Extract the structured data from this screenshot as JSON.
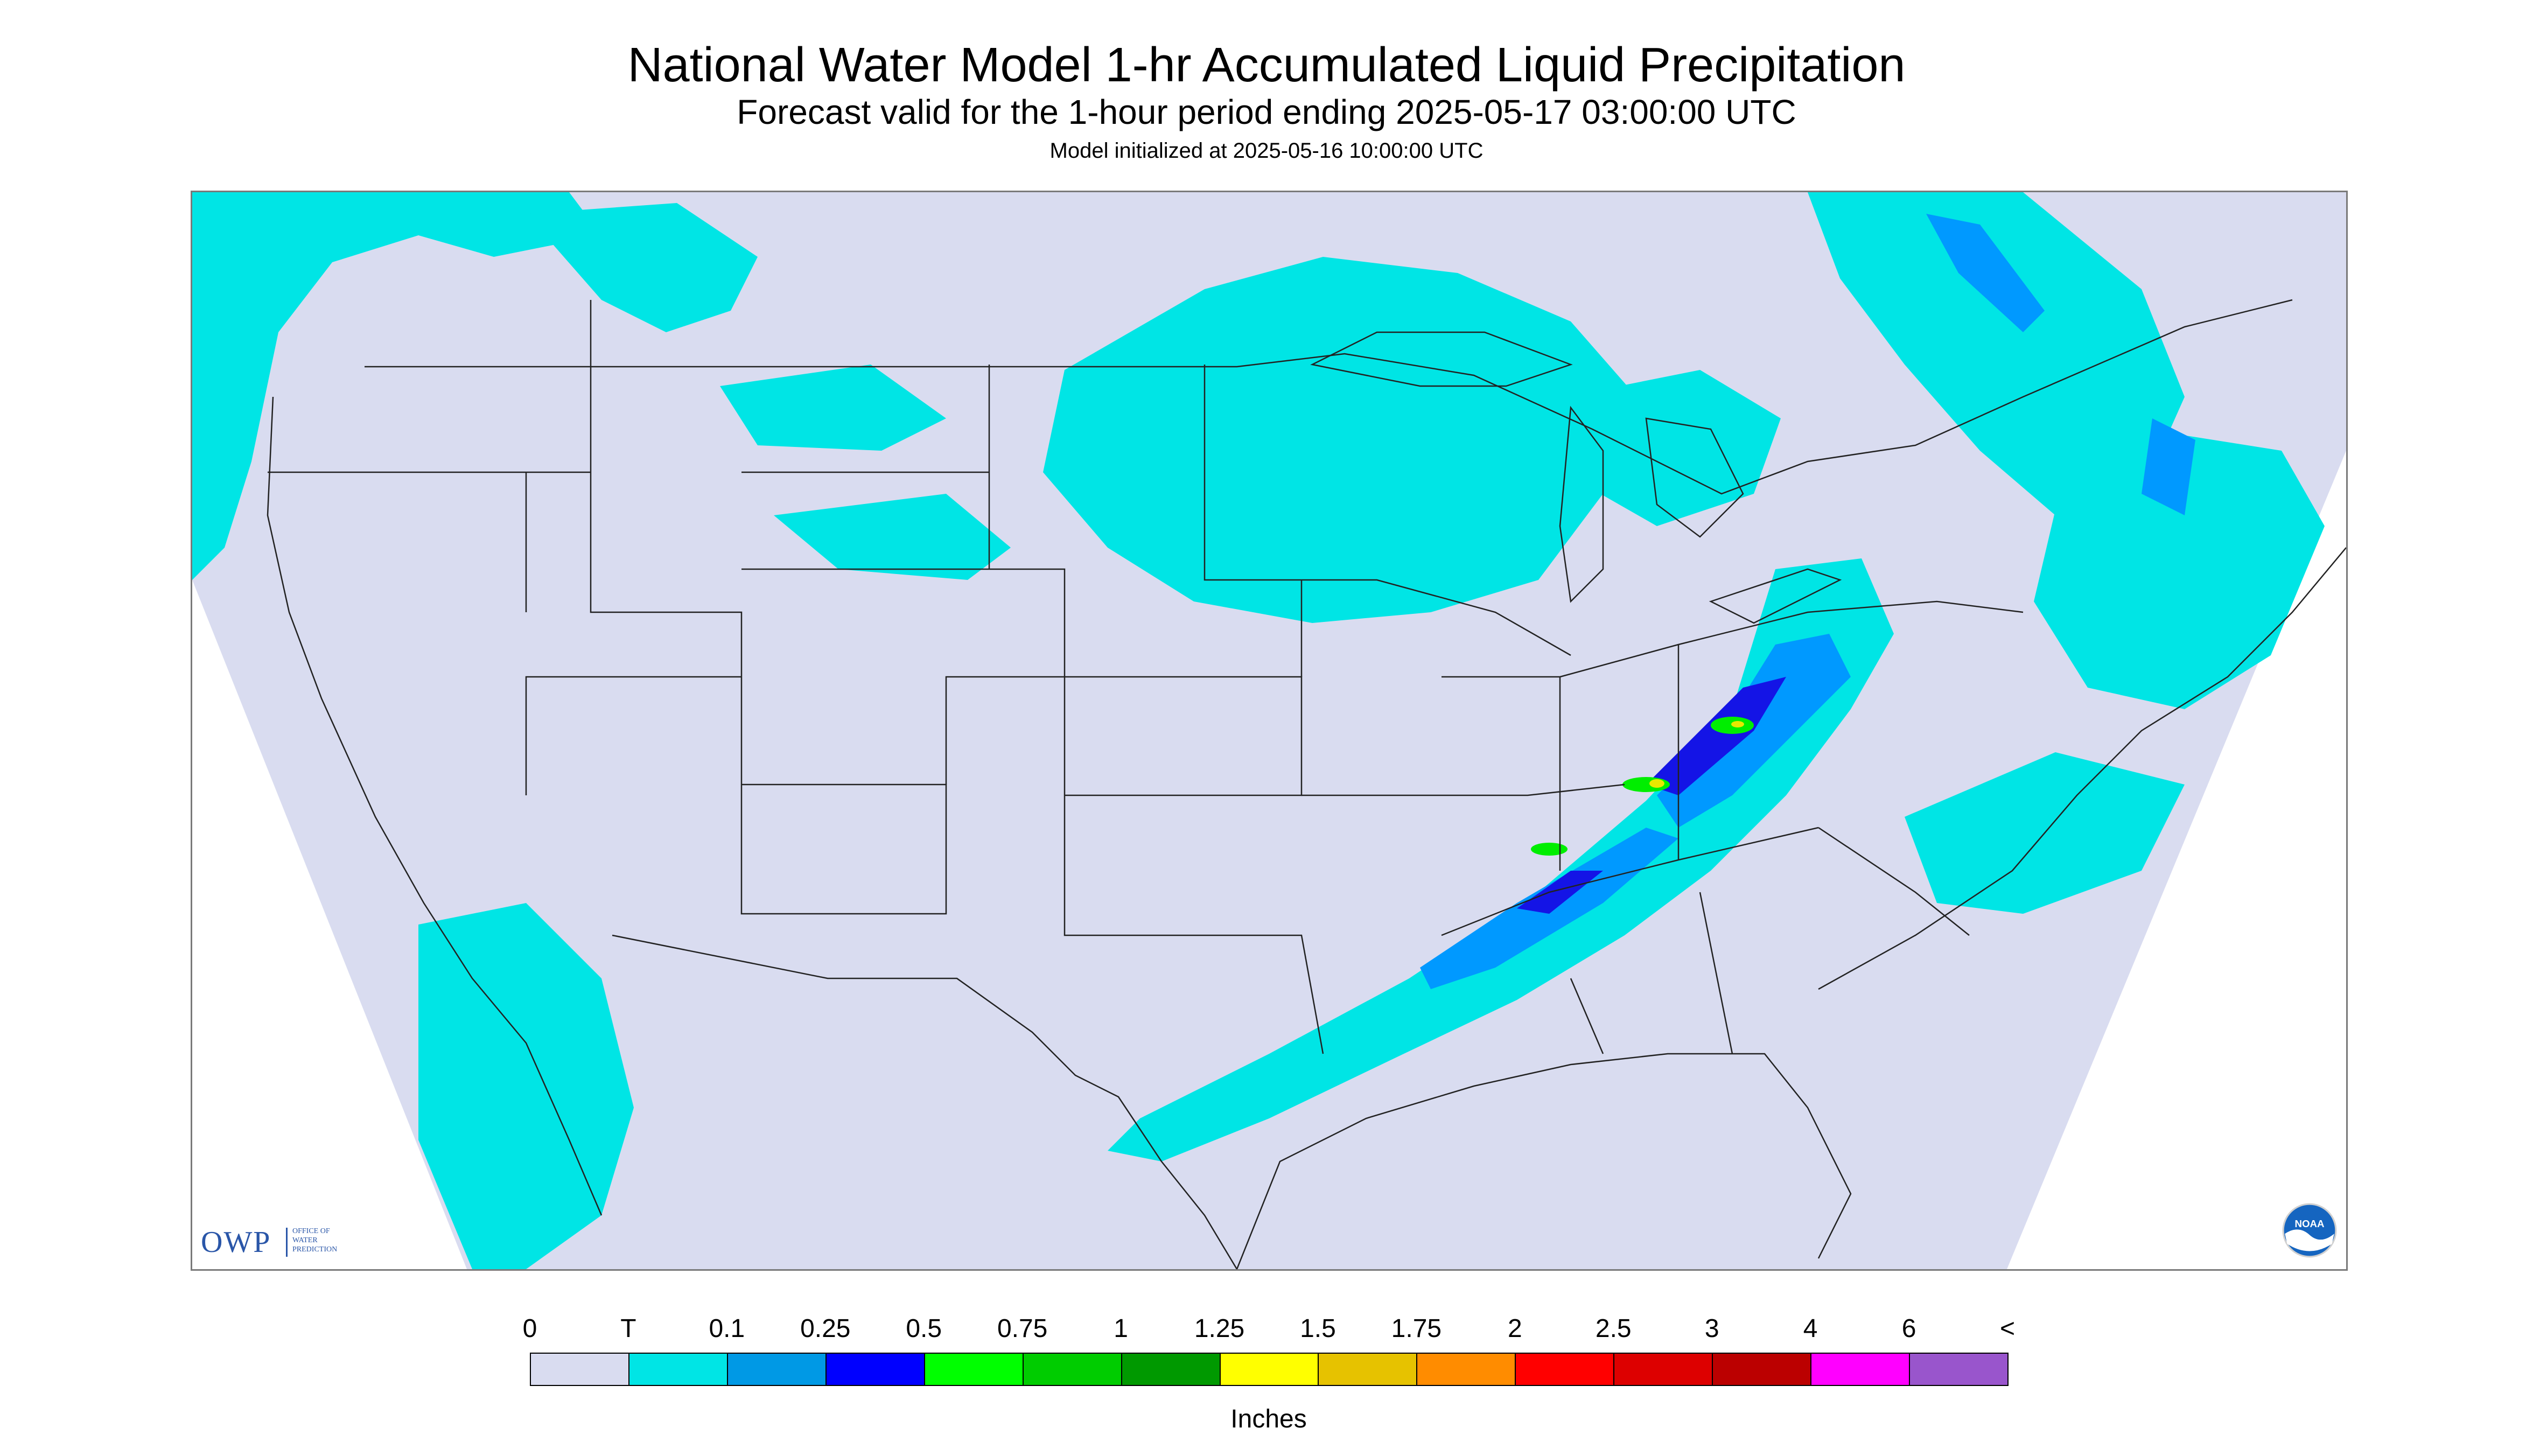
{
  "header": {
    "title": "National Water Model 1-hr Accumulated Liquid Precipitation",
    "subtitle": "Forecast valid for the 1-hour period ending 2025-05-17 03:00:00 UTC",
    "init_line": "Model initialized at 2025-05-16 10:00:00 UTC"
  },
  "logos": {
    "owp_mark": "OWP",
    "owp_lines": [
      "OFFICE OF",
      "WATER",
      "PREDICTION"
    ],
    "noaa_mark": "NOAA"
  },
  "map": {
    "background_color": "#d9dcf0",
    "outside_domain_color": "#ffffff",
    "boundary_color": "#222222",
    "precip_colors": {
      "trace": "#00e5e5",
      "light": "#0099ff",
      "moderate": "#1414e6",
      "heavy": "#00ee00",
      "very_heavy": "#e8e800"
    }
  },
  "legend": {
    "units": "Inches",
    "labels": [
      "0",
      "T",
      "0.1",
      "0.25",
      "0.5",
      "0.75",
      "1",
      "1.25",
      "1.5",
      "1.75",
      "2",
      "2.5",
      "3",
      "4",
      "6",
      "<"
    ],
    "colors": [
      "#d9dcf0",
      "#00e5e5",
      "#0099e5",
      "#0000ff",
      "#00ff00",
      "#00cc00",
      "#009900",
      "#ffff00",
      "#e6c200",
      "#ff8c00",
      "#ff0000",
      "#dd0000",
      "#bb0000",
      "#ff00ff",
      "#9955cc"
    ]
  }
}
